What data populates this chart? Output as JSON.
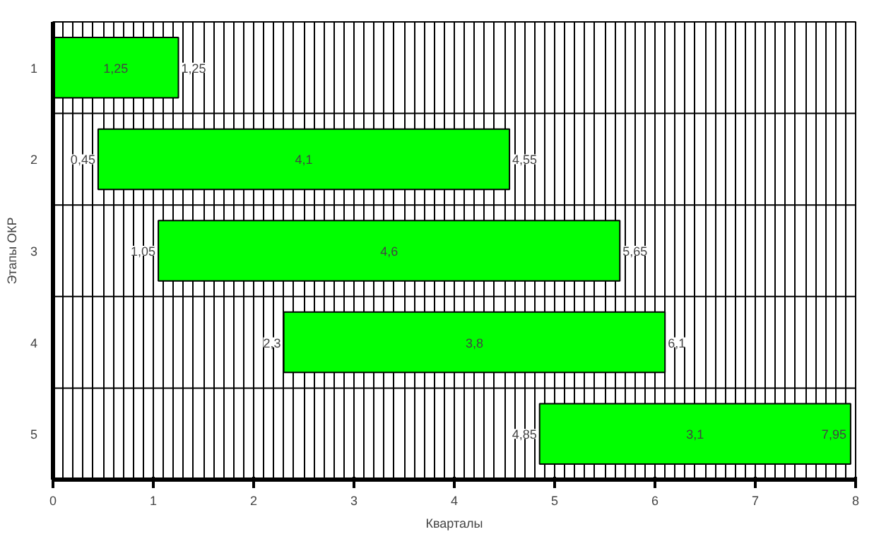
{
  "chart_data": {
    "type": "bar",
    "orientation": "horizontal",
    "xlabel": "Кварталы",
    "ylabel": "Этапы ОКР",
    "categories": [
      "1",
      "2",
      "3",
      "4",
      "5"
    ],
    "base": [
      0,
      0.45,
      1.05,
      2.3,
      4.85
    ],
    "values": [
      1.25,
      4.1,
      4.6,
      3.8,
      3.1
    ],
    "value_labels": [
      "1,25",
      "4,1",
      "4,6",
      "3,8",
      "3,1"
    ],
    "color": "#00ff00",
    "xlim": [
      0,
      8
    ],
    "xticks": [
      0,
      1,
      2,
      3,
      4,
      5,
      6,
      7,
      8
    ],
    "grid": true,
    "annotations": [
      {
        "text": "1,25",
        "x": 1.25,
        "y": "1"
      },
      {
        "text": "0,45",
        "x": 0.45,
        "y": "2"
      },
      {
        "text": "4,55",
        "x": 4.55,
        "y": "2"
      },
      {
        "text": "1,05",
        "x": 1.05,
        "y": "3"
      },
      {
        "text": "5,65",
        "x": 5.65,
        "y": "3"
      },
      {
        "text": "2,3",
        "x": 2.3,
        "y": "4"
      },
      {
        "text": "6,1",
        "x": 6.1,
        "y": "4"
      },
      {
        "text": "4,85",
        "x": 4.85,
        "y": "5"
      },
      {
        "text": "7,95",
        "x": 7.95,
        "y": "5"
      }
    ]
  }
}
